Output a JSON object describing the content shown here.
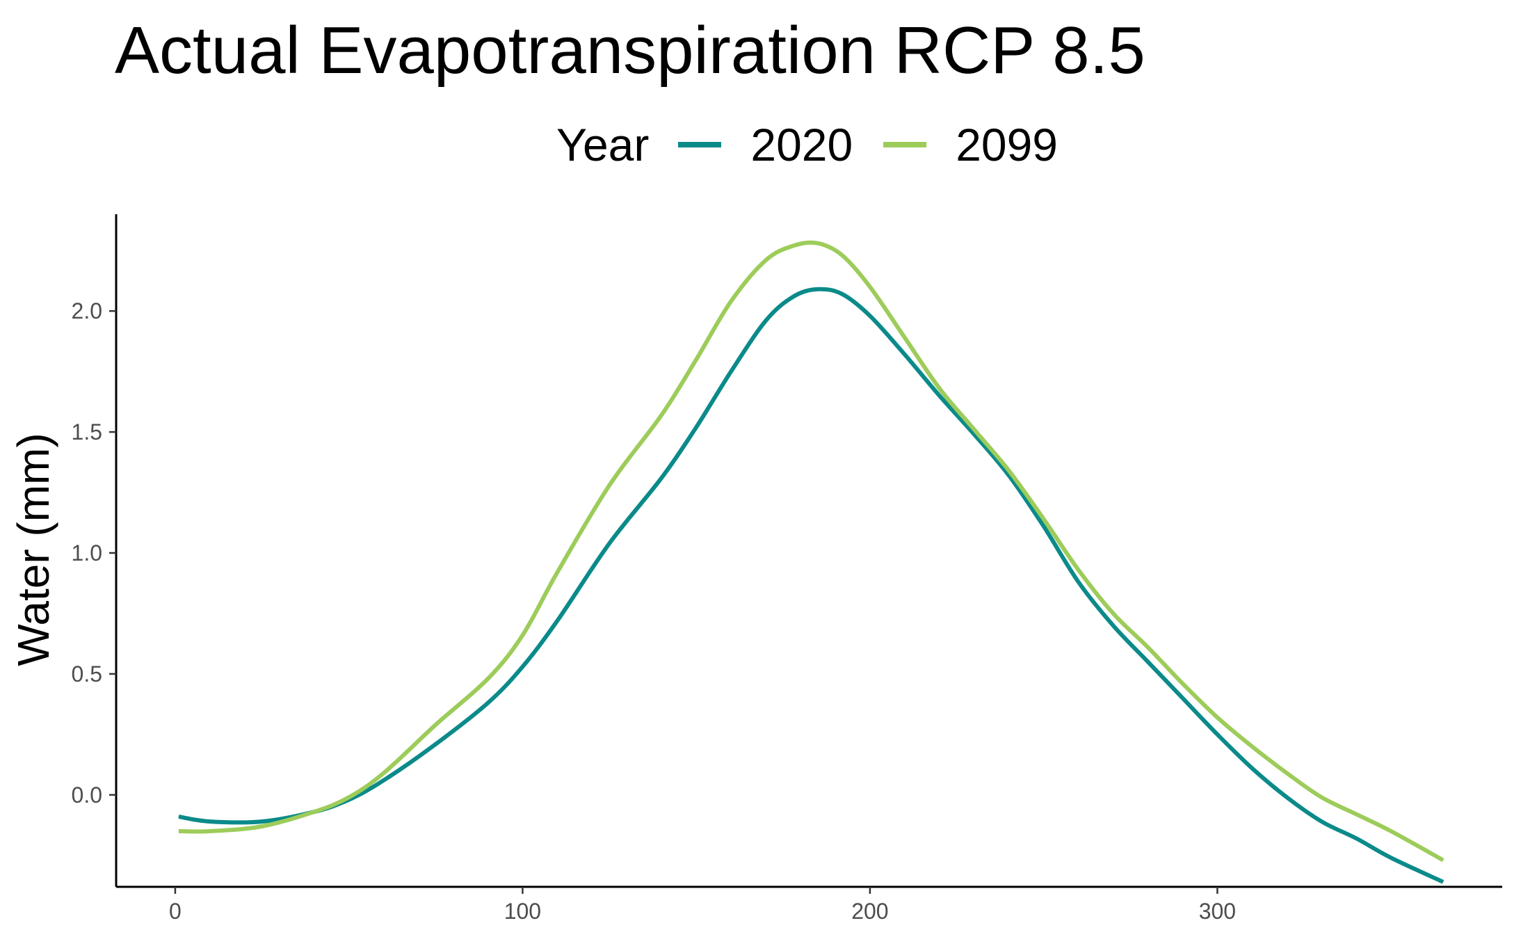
{
  "chart_data": {
    "type": "line",
    "title": "Actual Evapotranspiration RCP 8.5",
    "xlabel": "",
    "ylabel": "Water (mm)",
    "legend_title": "Year",
    "legend_position": "top",
    "grid": false,
    "xlim": [
      -17,
      382
    ],
    "ylim": [
      -0.38,
      2.4
    ],
    "x_ticks": [
      0,
      100,
      200,
      300
    ],
    "x_tick_labels": [
      "0",
      "100",
      "200",
      "300"
    ],
    "y_ticks": [
      0.0,
      0.5,
      1.0,
      1.5,
      2.0
    ],
    "y_tick_labels": [
      "0.0",
      "0.5",
      "1.0",
      "1.5",
      "2.0"
    ],
    "series": [
      {
        "name": "2020",
        "color": "#0b8a8a",
        "x": [
          1,
          10,
          25,
          40,
          50,
          60,
          75,
          90,
          100,
          110,
          125,
          140,
          150,
          160,
          170,
          178,
          185,
          192,
          200,
          210,
          220,
          230,
          240,
          250,
          260,
          270,
          280,
          290,
          300,
          310,
          320,
          330,
          340,
          350,
          365
        ],
        "y": [
          -0.09,
          -0.11,
          -0.11,
          -0.07,
          -0.02,
          0.06,
          0.21,
          0.38,
          0.53,
          0.72,
          1.04,
          1.31,
          1.52,
          1.75,
          1.96,
          2.06,
          2.09,
          2.07,
          1.98,
          1.82,
          1.65,
          1.49,
          1.32,
          1.11,
          0.88,
          0.7,
          0.55,
          0.4,
          0.25,
          0.11,
          -0.01,
          -0.11,
          -0.18,
          -0.26,
          -0.36
        ]
      },
      {
        "name": "2099",
        "color": "#9dcc5a",
        "x": [
          1,
          10,
          25,
          40,
          50,
          60,
          75,
          90,
          100,
          110,
          125,
          140,
          150,
          160,
          170,
          178,
          185,
          192,
          200,
          210,
          220,
          230,
          240,
          250,
          260,
          270,
          280,
          290,
          300,
          310,
          320,
          330,
          340,
          350,
          365
        ],
        "y": [
          -0.15,
          -0.15,
          -0.13,
          -0.07,
          -0.01,
          0.09,
          0.29,
          0.48,
          0.66,
          0.92,
          1.28,
          1.57,
          1.8,
          2.04,
          2.21,
          2.27,
          2.28,
          2.23,
          2.1,
          1.89,
          1.68,
          1.51,
          1.34,
          1.14,
          0.93,
          0.75,
          0.61,
          0.46,
          0.32,
          0.2,
          0.09,
          -0.01,
          -0.08,
          -0.15,
          -0.27
        ]
      }
    ]
  }
}
